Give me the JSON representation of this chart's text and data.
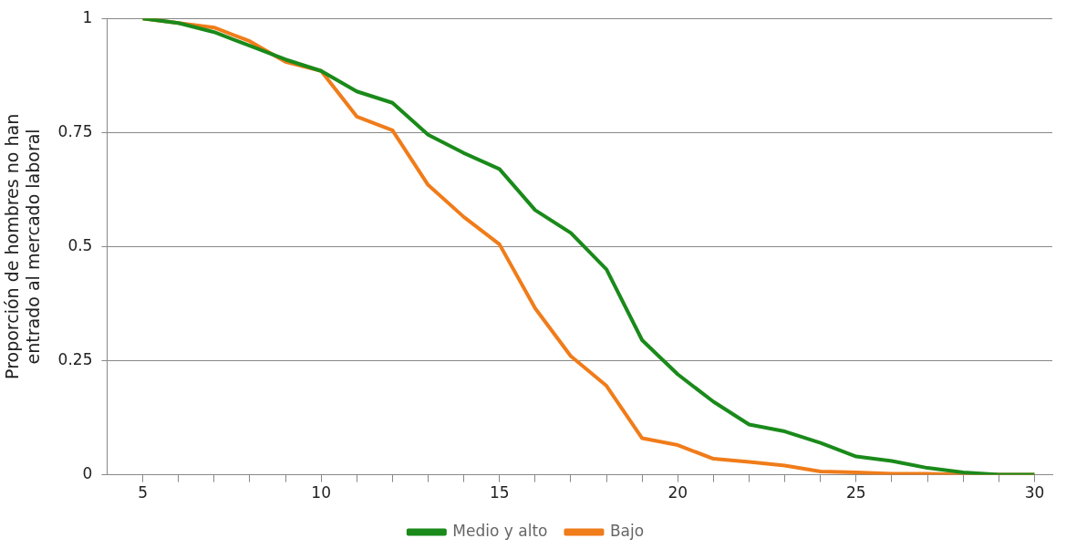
{
  "chart_data": {
    "type": "line",
    "ylabel": "Proporción de hombres no han\nentrado al mercado laboral",
    "x": [
      5,
      6,
      7,
      8,
      9,
      10,
      11,
      12,
      13,
      14,
      15,
      16,
      17,
      18,
      19,
      20,
      21,
      22,
      23,
      24,
      25,
      26,
      27,
      28,
      29,
      30
    ],
    "series": [
      {
        "name": "Medio y alto",
        "color": "#1a8a1a",
        "values": [
          1,
          0.99,
          0.97,
          0.94,
          0.91,
          0.885,
          0.84,
          0.815,
          0.745,
          0.705,
          0.67,
          0.58,
          0.53,
          0.45,
          0.295,
          0.22,
          0.16,
          0.11,
          0.095,
          0.07,
          0.04,
          0.03,
          0.015,
          0.005,
          0,
          0
        ]
      },
      {
        "name": "Bajo",
        "color": "#f07c1a",
        "values": [
          1,
          0.99,
          0.98,
          0.95,
          0.905,
          0.885,
          0.785,
          0.755,
          0.635,
          0.565,
          0.505,
          0.365,
          0.26,
          0.195,
          0.08,
          0.065,
          0.035,
          0.028,
          0.02,
          0.007,
          0.005,
          0.002,
          0.002,
          0,
          0,
          0
        ]
      }
    ],
    "xlim": [
      4,
      30.5
    ],
    "xticks": [
      5,
      {
        "value": 6,
        "label": null
      },
      {
        "value": 7,
        "label": null
      },
      {
        "value": 8,
        "label": null
      },
      {
        "value": 9,
        "label": null
      },
      10,
      {
        "value": 11,
        "label": null
      },
      {
        "value": 12,
        "label": null
      },
      {
        "value": 13,
        "label": null
      },
      {
        "value": 14,
        "label": null
      },
      15,
      {
        "value": 16,
        "label": null
      },
      {
        "value": 17,
        "label": null
      },
      {
        "value": 18,
        "label": null
      },
      {
        "value": 19,
        "label": null
      },
      20,
      {
        "value": 21,
        "label": null
      },
      {
        "value": 22,
        "label": null
      },
      {
        "value": 23,
        "label": null
      },
      {
        "value": 24,
        "label": null
      },
      25,
      {
        "value": 26,
        "label": null
      },
      {
        "value": 27,
        "label": null
      },
      {
        "value": 28,
        "label": null
      },
      {
        "value": 29,
        "label": null
      },
      30
    ],
    "ylim": [
      0,
      1
    ],
    "yticks": [
      0,
      0.25,
      0.5,
      0.75,
      1
    ],
    "grid": "y",
    "legend": "bottom",
    "marker": "none",
    "line_style": "solid"
  }
}
